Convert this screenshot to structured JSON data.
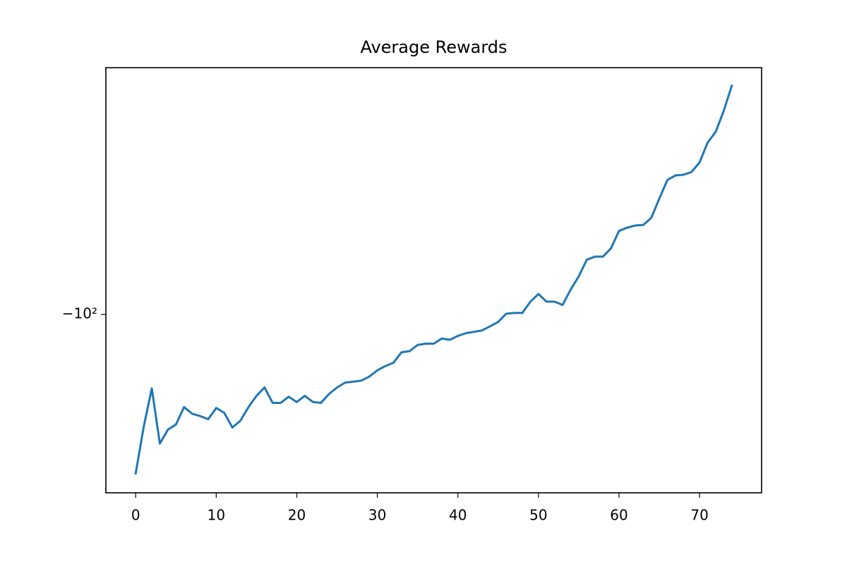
{
  "chart_data": {
    "type": "line",
    "title": "Average Rewards",
    "x": [
      0,
      1,
      2,
      3,
      4,
      5,
      6,
      7,
      8,
      9,
      10,
      11,
      12,
      13,
      14,
      15,
      16,
      17,
      18,
      19,
      20,
      21,
      22,
      23,
      24,
      25,
      26,
      27,
      28,
      29,
      30,
      31,
      32,
      33,
      34,
      35,
      36,
      37,
      38,
      39,
      40,
      41,
      42,
      43,
      44,
      45,
      46,
      47,
      48,
      49,
      50,
      51,
      52,
      53,
      54,
      55,
      56,
      57,
      58,
      59,
      60,
      61,
      62,
      63,
      64,
      65,
      66,
      67,
      68,
      69,
      70,
      71,
      72,
      73,
      74
    ],
    "values": [
      -282,
      -208,
      -162,
      -232,
      -212,
      -205,
      -183,
      -191,
      -194,
      -198,
      -184,
      -190,
      -209,
      -200,
      -183,
      -170,
      -161,
      -178,
      -178,
      -171,
      -177,
      -170,
      -177,
      -178,
      -168,
      -161,
      -156,
      -155,
      -154,
      -150,
      -144,
      -140,
      -137,
      -128,
      -127,
      -122,
      -121,
      -121,
      -117,
      -118,
      -115,
      -113,
      -112,
      -111,
      -108,
      -105,
      -99.5,
      -99,
      -99,
      -92,
      -87.5,
      -92,
      -92,
      -94,
      -85,
      -78,
      -70,
      -68.6,
      -68.6,
      -65,
      -58,
      -56.8,
      -56,
      -55.8,
      -53.3,
      -47,
      -41.6,
      -40.4,
      -40.2,
      -39.5,
      -37.1,
      -32.6,
      -30.4,
      -26.5,
      -22.5
    ],
    "color": "#1f77b4",
    "xlim": [
      -3.7,
      77.7
    ],
    "xticks": [
      0,
      10,
      20,
      30,
      40,
      50,
      60,
      70
    ],
    "ylim": [
      -320,
      -20
    ],
    "yticks": [
      {
        "value": -100,
        "label": "−10²"
      }
    ],
    "yscale": "log",
    "grid": false
  }
}
